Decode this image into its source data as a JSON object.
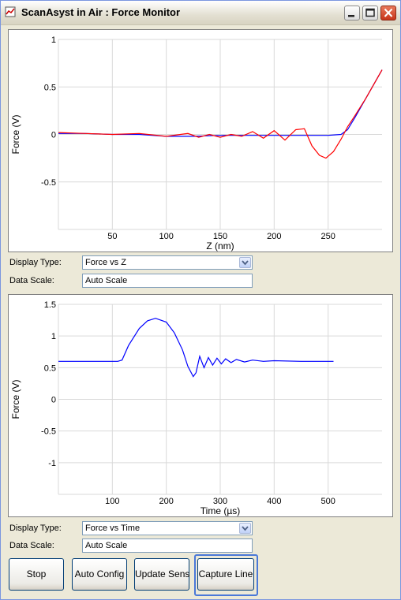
{
  "window": {
    "title": "ScanAsyst in Air : Force Monitor",
    "controls": [
      "minimize-icon",
      "maximize-icon",
      "close-icon"
    ]
  },
  "colors": {
    "trace": "#0000ff",
    "retrace": "#ff0000",
    "window_bg": "#ece9d8",
    "focus": "#4a78d8"
  },
  "plot1": {
    "display_type_label": "Display Type:",
    "display_type_value": "Force vs Z",
    "data_scale_label": "Data Scale:",
    "data_scale_value": "Auto Scale"
  },
  "plot2": {
    "display_type_label": "Display Type:",
    "display_type_value": "Force vs Time",
    "data_scale_label": "Data Scale:",
    "data_scale_value": "Auto Scale"
  },
  "buttons": {
    "stop": "Stop",
    "auto_config": "Auto Config",
    "update_sens": "Update Sens",
    "capture_line": "Capture Line"
  },
  "chart_data": [
    {
      "type": "line",
      "xlabel": "Z (nm)",
      "ylabel": "Force (V)",
      "xlim": [
        0,
        300
      ],
      "ylim": [
        -1,
        1
      ],
      "x_ticks": [
        50,
        100,
        150,
        200,
        250
      ],
      "y_ticks": [
        1,
        0.5,
        0,
        -0.5
      ],
      "y_tick_labels": [
        "1",
        "0.5",
        "0",
        "-0.5"
      ],
      "grid": true,
      "series": [
        {
          "color": "#0000ff",
          "x": [
            0,
            25,
            50,
            75,
            100,
            125,
            150,
            175,
            200,
            225,
            250,
            262,
            268,
            275,
            285,
            300
          ],
          "y": [
            0.01,
            0.01,
            0.0,
            0.0,
            -0.02,
            -0.02,
            -0.01,
            -0.01,
            -0.01,
            -0.01,
            -0.01,
            0.0,
            0.05,
            0.18,
            0.38,
            0.68
          ]
        },
        {
          "color": "#ff0000",
          "x": [
            0,
            25,
            50,
            75,
            100,
            120,
            130,
            140,
            150,
            160,
            170,
            180,
            190,
            200,
            210,
            220,
            228,
            235,
            242,
            248,
            255,
            262,
            268,
            275,
            285,
            300
          ],
          "y": [
            0.02,
            0.01,
            0.0,
            0.01,
            -0.02,
            0.01,
            -0.03,
            0.0,
            -0.03,
            0.0,
            -0.02,
            0.03,
            -0.04,
            0.04,
            -0.06,
            0.05,
            0.06,
            -0.12,
            -0.22,
            -0.25,
            -0.18,
            -0.05,
            0.08,
            0.2,
            0.38,
            0.68
          ]
        }
      ]
    },
    {
      "type": "line",
      "xlabel": "Time (µs)",
      "ylabel": "Force (V)",
      "xlim": [
        0,
        600
      ],
      "ylim": [
        -1.5,
        1.5
      ],
      "x_ticks": [
        100,
        200,
        300,
        400,
        500
      ],
      "y_ticks": [
        1.5,
        1,
        0.5,
        0,
        -0.5,
        -1
      ],
      "y_tick_labels": [
        "1.5",
        "1",
        "0.5",
        "0",
        "-0.5",
        "-1"
      ],
      "grid": true,
      "series": [
        {
          "color": "#0000ff",
          "x": [
            0,
            110,
            118,
            130,
            150,
            165,
            180,
            200,
            215,
            230,
            240,
            250,
            255,
            262,
            270,
            278,
            286,
            294,
            302,
            310,
            320,
            330,
            345,
            360,
            380,
            400,
            450,
            510
          ],
          "y": [
            0.6,
            0.6,
            0.62,
            0.85,
            1.12,
            1.24,
            1.28,
            1.22,
            1.05,
            0.78,
            0.52,
            0.36,
            0.42,
            0.68,
            0.5,
            0.66,
            0.54,
            0.65,
            0.56,
            0.64,
            0.58,
            0.63,
            0.59,
            0.62,
            0.6,
            0.61,
            0.6,
            0.6
          ]
        }
      ]
    }
  ]
}
